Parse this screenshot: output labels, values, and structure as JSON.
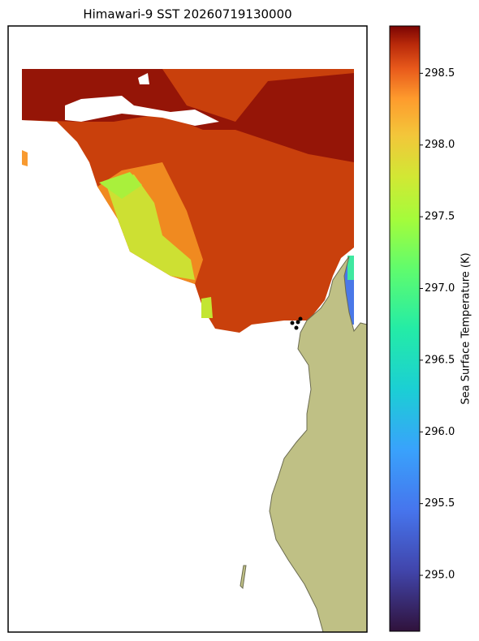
{
  "chart_data": {
    "type": "colorbar",
    "title": "Himawari-9 SST 20260719130000",
    "colorbar_label": "Sea Surface Temperature (K)",
    "clim": [
      294.61,
      298.83
    ],
    "cticks": [
      {
        "value": 295,
        "label": "295.0"
      },
      {
        "value": 295.5,
        "label": "295.5"
      },
      {
        "value": 296,
        "label": "296.0"
      },
      {
        "value": 296.5,
        "label": "296.5"
      },
      {
        "value": 297,
        "label": "297.0"
      },
      {
        "value": 297.5,
        "label": "297.5"
      },
      {
        "value": 298,
        "label": "298.0"
      },
      {
        "value": 298.5,
        "label": "298.5"
      }
    ]
  }
}
